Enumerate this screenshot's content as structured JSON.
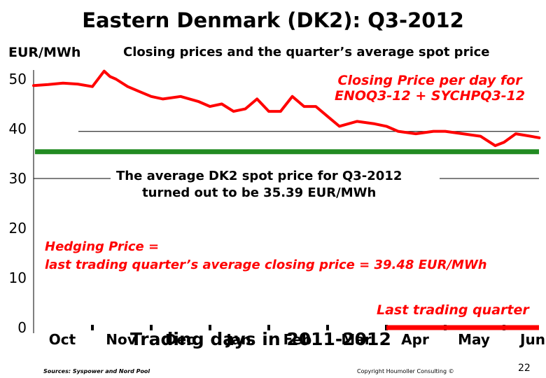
{
  "title": "Eastern Denmark (DK2): Q3-2012",
  "unit_label": "EUR/MWh",
  "subtitle": "Closing prices and the quarter’s average spot price",
  "annotations": {
    "closing_line1": "Closing Price per day for",
    "closing_line2": "ENOQ3-12 + SYCHPQ3-12",
    "average_line1": "The average DK2 spot price for Q3-2012",
    "average_line2": "turned out to be 35.39 EUR/MWh",
    "hedging_line1": "Hedging Price =",
    "hedging_line2": "last trading quarter’s average closing price  =  39.48 EUR/MWh",
    "last_quarter": "Last trading quarter"
  },
  "xlabel": "Trading days in 2011-2012",
  "source": "Sources: Syspower and Nord Pool",
  "copyright": "Copyright Houmoller Consulting ©",
  "page_number": "22",
  "colors": {
    "closing_price": "#ff0000",
    "average_spot": "#228b22",
    "last_quarter_bar": "#ff0000",
    "text_red": "#ff0000"
  },
  "chart_data": {
    "type": "line",
    "title": "Eastern Denmark (DK2): Q3-2012",
    "ylabel": "EUR/MWh",
    "xlabel": "Trading days in 2011-2012",
    "ylim": [
      0,
      50
    ],
    "yticks": [
      0,
      10,
      20,
      30,
      40,
      50
    ],
    "months": [
      "Oct",
      "Nov",
      "Dec",
      "Jan",
      "Feb",
      "Mar",
      "Apr",
      "May",
      "Jun"
    ],
    "grid": false,
    "series": [
      {
        "name": "Closing Price per day for ENOQ3-12 + SYCHPQ3-12",
        "x_month_fraction": [
          0.0,
          0.25,
          0.5,
          0.75,
          1.0,
          1.2,
          1.3,
          1.4,
          1.6,
          1.8,
          2.0,
          2.2,
          2.5,
          2.8,
          3.0,
          3.2,
          3.4,
          3.6,
          3.8,
          4.0,
          4.2,
          4.4,
          4.6,
          4.8,
          5.0,
          5.2,
          5.5,
          5.8,
          6.0,
          6.2,
          6.5,
          6.8,
          7.0,
          7.3,
          7.6,
          7.85,
          8.0,
          8.2,
          8.4,
          8.6
        ],
        "values": [
          48.7,
          48.9,
          49.2,
          49.0,
          48.5,
          51.6,
          50.5,
          50.0,
          48.5,
          47.5,
          46.5,
          46.0,
          46.5,
          45.5,
          44.5,
          45.0,
          43.5,
          44.0,
          46.0,
          43.5,
          43.5,
          46.5,
          44.5,
          44.5,
          42.5,
          40.5,
          41.5,
          41.0,
          40.5,
          39.5,
          39.0,
          39.5,
          39.5,
          39.0,
          38.5,
          36.6,
          37.3,
          39.0,
          38.6,
          38.2
        ]
      },
      {
        "name": "The average DK2 spot price for Q3-2012",
        "values": [
          35.39
        ]
      }
    ],
    "hedging_price": 39.48,
    "average_spot_price": 35.39
  }
}
